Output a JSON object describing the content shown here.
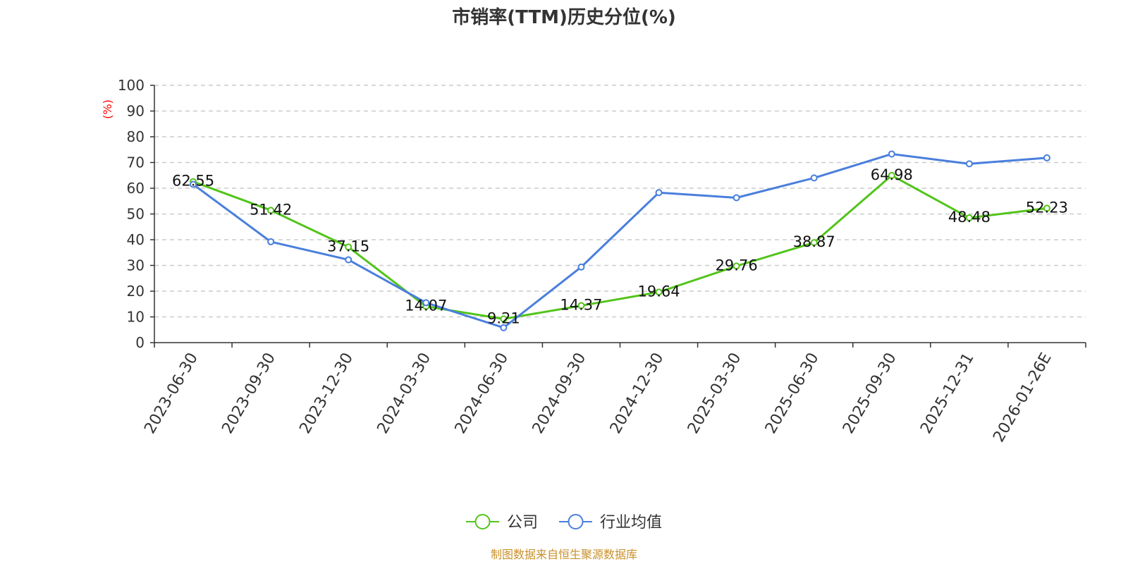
{
  "chart_data": {
    "type": "line",
    "title": "市销率(TTM)历史分位(%)",
    "ylabel": "(%)",
    "xlabel": "",
    "ylim": [
      0,
      100
    ],
    "yticks": [
      0,
      10,
      20,
      30,
      40,
      50,
      60,
      70,
      80,
      90,
      100
    ],
    "grid": true,
    "legend_position": "bottom-center",
    "categories": [
      "2023-06-30",
      "2023-09-30",
      "2023-12-30",
      "2024-03-30",
      "2024-06-30",
      "2024-09-30",
      "2024-12-30",
      "2025-03-30",
      "2025-06-30",
      "2025-09-30",
      "2025-12-31",
      "2026-01-26E"
    ],
    "series": [
      {
        "name": "公司",
        "color": "#52c41a",
        "values": [
          62.55,
          51.42,
          37.15,
          14.07,
          9.21,
          14.37,
          19.64,
          29.76,
          38.87,
          64.98,
          48.48,
          52.23
        ],
        "labels": [
          "62.55",
          "51.42",
          "37.15",
          "14.07",
          "9.21",
          "14.37",
          "19.64",
          "29.76",
          "38.87",
          "64.98",
          "48.48",
          "52.23"
        ]
      },
      {
        "name": "行业均值",
        "color": "#4a7fdc",
        "values": [
          61.5,
          39.2,
          32.2,
          15.5,
          5.8,
          29.4,
          58.3,
          56.3,
          64.0,
          73.3,
          69.5,
          71.8
        ]
      }
    ]
  },
  "source": {
    "text": "制图数据来自恒生聚源数据库",
    "color": "#c8902a"
  }
}
